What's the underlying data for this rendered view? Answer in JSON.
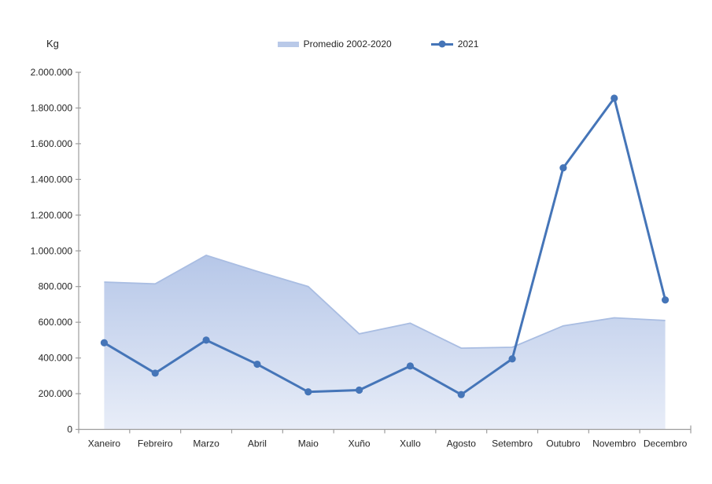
{
  "y_axis_title": "Kg",
  "legend": [
    {
      "label": "Promedio 2002-2020"
    },
    {
      "label": "2021"
    }
  ],
  "chart_data": {
    "type": "combo",
    "categories": [
      "Xaneiro",
      "Febreiro",
      "Marzo",
      "Abril",
      "Maio",
      "Xuño",
      "Xullo",
      "Agosto",
      "Setembro",
      "Outubro",
      "Novembro",
      "Decembro"
    ],
    "series": [
      {
        "name": "Promedio 2002-2020",
        "type": "area",
        "values": [
          825000,
          815000,
          975000,
          885000,
          800000,
          535000,
          595000,
          455000,
          460000,
          580000,
          625000,
          610000
        ],
        "fill_top": "#b6c7e8",
        "fill_bottom": "#e8edf8",
        "edge_color": "#a9bde2",
        "legend_swatch": "#b9c9e8"
      },
      {
        "name": "2021",
        "type": "line",
        "values": [
          485000,
          315000,
          500000,
          365000,
          210000,
          220000,
          355000,
          195000,
          395000,
          1465000,
          1855000,
          725000
        ],
        "color": "#4575b8",
        "marker": "circle"
      }
    ],
    "ylabel": "Kg",
    "xlabel": "",
    "ylim": [
      0,
      2000000
    ],
    "y_axis": {
      "tick_step": 200000,
      "tick_labels": [
        "0",
        "200.000",
        "400.000",
        "600.000",
        "800.000",
        "1.000.000",
        "1.200.000",
        "1.400.000",
        "1.600.000",
        "1.800.000",
        "2.000.000"
      ]
    },
    "grid": false,
    "legend_position": "top-center",
    "axis_color": "#9d9d9d",
    "text_color": "#262626"
  }
}
